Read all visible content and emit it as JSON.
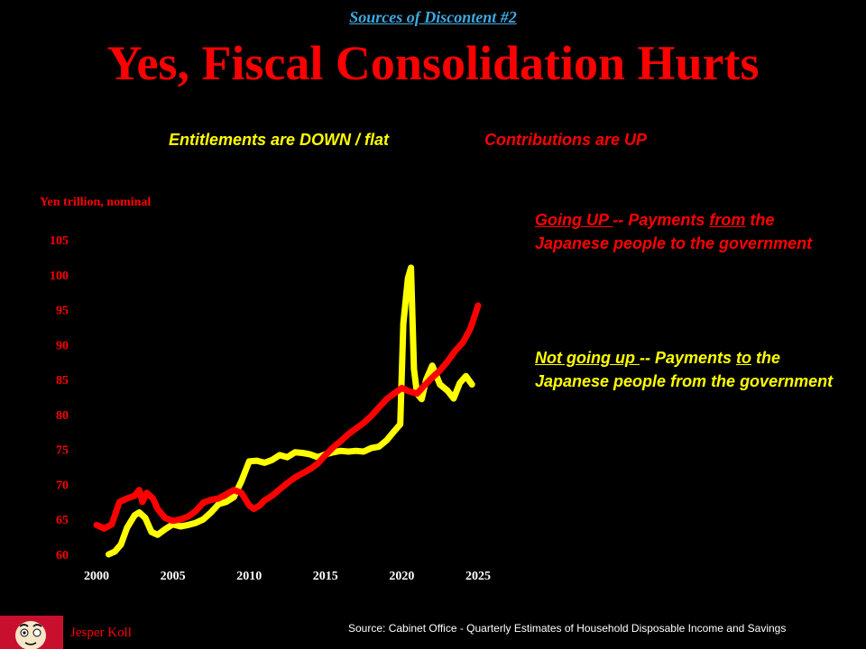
{
  "header": {
    "subtitle": "Sources of Discontent #2",
    "title": "Yes, Fiscal Consolidation Hurts",
    "entitlements_heading": "Entitlements are DOWN / flat",
    "contributions_heading": "Contributions are UP"
  },
  "notes": {
    "up": {
      "part1": "Going UP ",
      "part2": "-- Payments ",
      "part3": "from",
      "part4": " the Japanese people to the government"
    },
    "flat": {
      "part1": "Not going up ",
      "part2": "-- Payments ",
      "part3": "to",
      "part4": " the Japanese people from the government"
    }
  },
  "footer": {
    "source": "Source: Cabinet Office -  Quarterly Estimates of Household Disposable Income and Savings",
    "author": "Jesper Koll"
  },
  "colors": {
    "background": "#000000",
    "contributions": "#ff0000",
    "entitlements": "#ffff00",
    "subtitle": "#3fa9e0"
  },
  "chart_data": {
    "type": "line",
    "title": "",
    "xlabel": "",
    "ylabel": "Yen trillion, nominal",
    "xlim": [
      2000,
      2025
    ],
    "ylim": [
      60,
      105
    ],
    "x_ticks": [
      2000,
      2005,
      2010,
      2015,
      2020,
      2025
    ],
    "y_ticks": [
      60,
      65,
      70,
      75,
      80,
      85,
      90,
      95,
      100,
      105
    ],
    "series": [
      {
        "name": "Contributions (payments from people to government)",
        "color": "#ff0000",
        "points": [
          [
            2000,
            64.2
          ],
          [
            2000.5,
            63.7
          ],
          [
            2001,
            64.3
          ],
          [
            2001.5,
            67.5
          ],
          [
            2002,
            68.0
          ],
          [
            2002.5,
            68.4
          ],
          [
            2002.8,
            69.2
          ],
          [
            2003,
            67.5
          ],
          [
            2003.3,
            68.8
          ],
          [
            2003.7,
            68.0
          ],
          [
            2004,
            66.5
          ],
          [
            2004.5,
            65.2
          ],
          [
            2005,
            64.8
          ],
          [
            2005.5,
            65.0
          ],
          [
            2006,
            65.4
          ],
          [
            2006.5,
            66.2
          ],
          [
            2007,
            67.4
          ],
          [
            2007.5,
            67.8
          ],
          [
            2008,
            68.0
          ],
          [
            2008.5,
            68.6
          ],
          [
            2009,
            69.2
          ],
          [
            2009.5,
            68.8
          ],
          [
            2010,
            67.0
          ],
          [
            2010.3,
            66.5
          ],
          [
            2010.7,
            67.0
          ],
          [
            2011,
            67.7
          ],
          [
            2011.5,
            68.4
          ],
          [
            2012,
            69.3
          ],
          [
            2012.5,
            70.2
          ],
          [
            2013,
            71.0
          ],
          [
            2013.5,
            71.6
          ],
          [
            2014,
            72.2
          ],
          [
            2014.5,
            73.0
          ],
          [
            2015,
            74.2
          ],
          [
            2015.5,
            75.3
          ],
          [
            2016,
            76.2
          ],
          [
            2016.5,
            77.2
          ],
          [
            2017,
            78.0
          ],
          [
            2017.5,
            78.8
          ],
          [
            2018,
            79.8
          ],
          [
            2018.5,
            81.0
          ],
          [
            2019,
            82.2
          ],
          [
            2019.5,
            83.0
          ],
          [
            2020,
            83.8
          ],
          [
            2020.5,
            83.3
          ],
          [
            2021,
            83.0
          ],
          [
            2021.5,
            84.2
          ],
          [
            2022,
            85.3
          ],
          [
            2022.5,
            86.3
          ],
          [
            2023,
            87.6
          ],
          [
            2023.5,
            89.1
          ],
          [
            2024,
            90.3
          ],
          [
            2024.5,
            92.3
          ],
          [
            2025,
            95.6
          ]
        ]
      },
      {
        "name": "Entitlements (payments to people from government)",
        "color": "#ffff00",
        "points": [
          [
            2000.8,
            60.0
          ],
          [
            2001.2,
            60.4
          ],
          [
            2001.6,
            61.4
          ],
          [
            2002,
            63.8
          ],
          [
            2002.5,
            65.6
          ],
          [
            2002.8,
            66.0
          ],
          [
            2003.2,
            65.2
          ],
          [
            2003.6,
            63.2
          ],
          [
            2004,
            62.8
          ],
          [
            2004.5,
            63.6
          ],
          [
            2005,
            64.3
          ],
          [
            2005.5,
            64.0
          ],
          [
            2006,
            64.2
          ],
          [
            2006.5,
            64.5
          ],
          [
            2007,
            65.0
          ],
          [
            2007.5,
            66.0
          ],
          [
            2008,
            67.2
          ],
          [
            2008.5,
            67.5
          ],
          [
            2009,
            68.2
          ],
          [
            2009.5,
            70.5
          ],
          [
            2010,
            73.3
          ],
          [
            2010.5,
            73.4
          ],
          [
            2011,
            73.1
          ],
          [
            2011.5,
            73.5
          ],
          [
            2012,
            74.2
          ],
          [
            2012.5,
            73.9
          ],
          [
            2013,
            74.6
          ],
          [
            2013.5,
            74.5
          ],
          [
            2014,
            74.3
          ],
          [
            2014.5,
            73.9
          ],
          [
            2015,
            74.3
          ],
          [
            2015.5,
            74.6
          ],
          [
            2016,
            74.8
          ],
          [
            2016.5,
            74.7
          ],
          [
            2017,
            74.8
          ],
          [
            2017.5,
            74.7
          ],
          [
            2018,
            75.2
          ],
          [
            2018.5,
            75.4
          ],
          [
            2019,
            76.3
          ],
          [
            2019.5,
            77.6
          ],
          [
            2019.9,
            78.6
          ],
          [
            2020.1,
            93.0
          ],
          [
            2020.4,
            99.5
          ],
          [
            2020.6,
            101.0
          ],
          [
            2020.8,
            86.5
          ],
          [
            2021,
            83.0
          ],
          [
            2021.3,
            82.2
          ],
          [
            2021.6,
            85.0
          ],
          [
            2022,
            87.0
          ],
          [
            2022.5,
            84.3
          ],
          [
            2023,
            83.4
          ],
          [
            2023.4,
            82.3
          ],
          [
            2023.8,
            84.5
          ],
          [
            2024.2,
            85.5
          ],
          [
            2024.6,
            84.3
          ]
        ]
      }
    ]
  }
}
